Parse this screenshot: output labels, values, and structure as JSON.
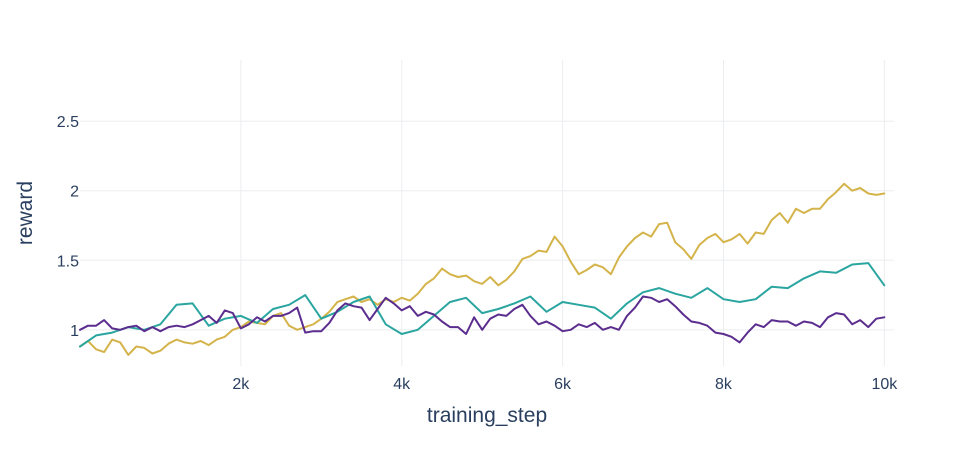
{
  "chart_data": {
    "type": "line",
    "xlabel": "training_step",
    "ylabel": "reward",
    "xlim": [
      0,
      10120
    ],
    "ylim": [
      0.74,
      2.94
    ],
    "xticks": [
      2000,
      4000,
      6000,
      8000,
      10000
    ],
    "xtick_labels": [
      "2k",
      "4k",
      "6k",
      "8k",
      "10k"
    ],
    "yticks": [
      1,
      1.5,
      2,
      2.5
    ],
    "ytick_labels": [
      "1",
      "1.5",
      "2",
      "2.5"
    ],
    "grid": true,
    "legend": false,
    "series": [
      {
        "color": "#d4b44a",
        "points": [
          [
            0,
            0.88
          ],
          [
            100,
            0.92
          ],
          [
            200,
            0.86
          ],
          [
            300,
            0.84
          ],
          [
            400,
            0.93
          ],
          [
            500,
            0.91
          ],
          [
            600,
            0.82
          ],
          [
            700,
            0.88
          ],
          [
            800,
            0.87
          ],
          [
            900,
            0.83
          ],
          [
            1000,
            0.85
          ],
          [
            1100,
            0.9
          ],
          [
            1200,
            0.93
          ],
          [
            1300,
            0.91
          ],
          [
            1400,
            0.9
          ],
          [
            1500,
            0.92
          ],
          [
            1600,
            0.89
          ],
          [
            1700,
            0.93
          ],
          [
            1800,
            0.95
          ],
          [
            1900,
            1.0
          ],
          [
            2000,
            1.02
          ],
          [
            2100,
            1.06
          ],
          [
            2200,
            1.05
          ],
          [
            2300,
            1.04
          ],
          [
            2400,
            1.1
          ],
          [
            2500,
            1.12
          ],
          [
            2600,
            1.03
          ],
          [
            2700,
            1.0
          ],
          [
            2800,
            1.02
          ],
          [
            2900,
            1.04
          ],
          [
            3000,
            1.08
          ],
          [
            3100,
            1.13
          ],
          [
            3200,
            1.2
          ],
          [
            3300,
            1.22
          ],
          [
            3400,
            1.24
          ],
          [
            3500,
            1.2
          ],
          [
            3600,
            1.22
          ],
          [
            3700,
            1.18
          ],
          [
            3800,
            1.22
          ],
          [
            3900,
            1.2
          ],
          [
            4000,
            1.23
          ],
          [
            4100,
            1.21
          ],
          [
            4200,
            1.26
          ],
          [
            4300,
            1.33
          ],
          [
            4400,
            1.37
          ],
          [
            4500,
            1.44
          ],
          [
            4600,
            1.4
          ],
          [
            4700,
            1.38
          ],
          [
            4800,
            1.39
          ],
          [
            4900,
            1.35
          ],
          [
            5000,
            1.33
          ],
          [
            5100,
            1.38
          ],
          [
            5200,
            1.32
          ],
          [
            5300,
            1.36
          ],
          [
            5400,
            1.42
          ],
          [
            5500,
            1.51
          ],
          [
            5600,
            1.53
          ],
          [
            5700,
            1.57
          ],
          [
            5800,
            1.56
          ],
          [
            5900,
            1.67
          ],
          [
            6000,
            1.6
          ],
          [
            6100,
            1.49
          ],
          [
            6200,
            1.4
          ],
          [
            6300,
            1.43
          ],
          [
            6400,
            1.47
          ],
          [
            6500,
            1.45
          ],
          [
            6600,
            1.4
          ],
          [
            6700,
            1.52
          ],
          [
            6800,
            1.6
          ],
          [
            6900,
            1.66
          ],
          [
            7000,
            1.7
          ],
          [
            7100,
            1.67
          ],
          [
            7200,
            1.76
          ],
          [
            7300,
            1.77
          ],
          [
            7400,
            1.63
          ],
          [
            7500,
            1.58
          ],
          [
            7600,
            1.51
          ],
          [
            7700,
            1.61
          ],
          [
            7800,
            1.66
          ],
          [
            7900,
            1.69
          ],
          [
            8000,
            1.63
          ],
          [
            8100,
            1.65
          ],
          [
            8200,
            1.69
          ],
          [
            8300,
            1.62
          ],
          [
            8400,
            1.7
          ],
          [
            8500,
            1.69
          ],
          [
            8600,
            1.79
          ],
          [
            8700,
            1.84
          ],
          [
            8800,
            1.77
          ],
          [
            8900,
            1.87
          ],
          [
            9000,
            1.84
          ],
          [
            9100,
            1.87
          ],
          [
            9200,
            1.87
          ],
          [
            9300,
            1.94
          ],
          [
            9400,
            1.99
          ],
          [
            9500,
            2.05
          ],
          [
            9600,
            2.0
          ],
          [
            9700,
            2.02
          ],
          [
            9800,
            1.98
          ],
          [
            9900,
            1.97
          ],
          [
            10000,
            1.98
          ]
        ]
      },
      {
        "color": "#2aa5a0",
        "points": [
          [
            0,
            0.88
          ],
          [
            200,
            0.96
          ],
          [
            400,
            0.98
          ],
          [
            600,
            1.02
          ],
          [
            800,
            1.0
          ],
          [
            1000,
            1.04
          ],
          [
            1200,
            1.18
          ],
          [
            1400,
            1.19
          ],
          [
            1600,
            1.03
          ],
          [
            1800,
            1.08
          ],
          [
            2000,
            1.1
          ],
          [
            2200,
            1.05
          ],
          [
            2400,
            1.15
          ],
          [
            2600,
            1.18
          ],
          [
            2800,
            1.25
          ],
          [
            3000,
            1.08
          ],
          [
            3200,
            1.13
          ],
          [
            3400,
            1.2
          ],
          [
            3600,
            1.24
          ],
          [
            3800,
            1.04
          ],
          [
            4000,
            0.97
          ],
          [
            4200,
            1.0
          ],
          [
            4400,
            1.1
          ],
          [
            4600,
            1.2
          ],
          [
            4800,
            1.23
          ],
          [
            5000,
            1.12
          ],
          [
            5200,
            1.15
          ],
          [
            5400,
            1.19
          ],
          [
            5600,
            1.24
          ],
          [
            5800,
            1.13
          ],
          [
            6000,
            1.2
          ],
          [
            6200,
            1.18
          ],
          [
            6400,
            1.16
          ],
          [
            6600,
            1.08
          ],
          [
            6800,
            1.19
          ],
          [
            7000,
            1.27
          ],
          [
            7200,
            1.3
          ],
          [
            7400,
            1.26
          ],
          [
            7600,
            1.23
          ],
          [
            7800,
            1.3
          ],
          [
            8000,
            1.22
          ],
          [
            8200,
            1.2
          ],
          [
            8400,
            1.22
          ],
          [
            8600,
            1.31
          ],
          [
            8800,
            1.3
          ],
          [
            9000,
            1.37
          ],
          [
            9200,
            1.42
          ],
          [
            9400,
            1.41
          ],
          [
            9600,
            1.47
          ],
          [
            9800,
            1.48
          ],
          [
            10000,
            1.32
          ]
        ]
      },
      {
        "color": "#5b2d8e",
        "points": [
          [
            0,
            1.0
          ],
          [
            100,
            1.03
          ],
          [
            200,
            1.03
          ],
          [
            300,
            1.07
          ],
          [
            400,
            1.01
          ],
          [
            500,
            1.0
          ],
          [
            600,
            1.02
          ],
          [
            700,
            1.03
          ],
          [
            800,
            0.99
          ],
          [
            900,
            1.02
          ],
          [
            1000,
            0.99
          ],
          [
            1100,
            1.02
          ],
          [
            1200,
            1.03
          ],
          [
            1300,
            1.02
          ],
          [
            1400,
            1.04
          ],
          [
            1500,
            1.07
          ],
          [
            1600,
            1.1
          ],
          [
            1700,
            1.05
          ],
          [
            1800,
            1.14
          ],
          [
            1900,
            1.12
          ],
          [
            2000,
            1.01
          ],
          [
            2100,
            1.04
          ],
          [
            2200,
            1.09
          ],
          [
            2300,
            1.06
          ],
          [
            2400,
            1.1
          ],
          [
            2500,
            1.1
          ],
          [
            2600,
            1.12
          ],
          [
            2700,
            1.16
          ],
          [
            2800,
            0.98
          ],
          [
            2900,
            0.99
          ],
          [
            3000,
            0.99
          ],
          [
            3100,
            1.05
          ],
          [
            3200,
            1.14
          ],
          [
            3300,
            1.19
          ],
          [
            3400,
            1.17
          ],
          [
            3500,
            1.16
          ],
          [
            3600,
            1.07
          ],
          [
            3700,
            1.15
          ],
          [
            3800,
            1.23
          ],
          [
            3900,
            1.19
          ],
          [
            4000,
            1.14
          ],
          [
            4100,
            1.17
          ],
          [
            4200,
            1.1
          ],
          [
            4300,
            1.13
          ],
          [
            4400,
            1.11
          ],
          [
            4500,
            1.06
          ],
          [
            4600,
            1.02
          ],
          [
            4700,
            1.02
          ],
          [
            4800,
            0.97
          ],
          [
            4900,
            1.09
          ],
          [
            5000,
            1.0
          ],
          [
            5100,
            1.08
          ],
          [
            5200,
            1.11
          ],
          [
            5300,
            1.1
          ],
          [
            5400,
            1.15
          ],
          [
            5500,
            1.18
          ],
          [
            5600,
            1.1
          ],
          [
            5700,
            1.04
          ],
          [
            5800,
            1.06
          ],
          [
            5900,
            1.03
          ],
          [
            6000,
            0.99
          ],
          [
            6100,
            1.0
          ],
          [
            6200,
            1.04
          ],
          [
            6300,
            1.02
          ],
          [
            6400,
            1.05
          ],
          [
            6500,
            1.0
          ],
          [
            6600,
            1.02
          ],
          [
            6700,
            1.0
          ],
          [
            6800,
            1.1
          ],
          [
            6900,
            1.16
          ],
          [
            7000,
            1.24
          ],
          [
            7100,
            1.23
          ],
          [
            7200,
            1.2
          ],
          [
            7300,
            1.22
          ],
          [
            7400,
            1.17
          ],
          [
            7500,
            1.11
          ],
          [
            7600,
            1.06
          ],
          [
            7700,
            1.05
          ],
          [
            7800,
            1.03
          ],
          [
            7900,
            0.98
          ],
          [
            8000,
            0.97
          ],
          [
            8100,
            0.95
          ],
          [
            8200,
            0.91
          ],
          [
            8300,
            0.98
          ],
          [
            8400,
            1.04
          ],
          [
            8500,
            1.02
          ],
          [
            8600,
            1.07
          ],
          [
            8700,
            1.06
          ],
          [
            8800,
            1.06
          ],
          [
            8900,
            1.03
          ],
          [
            9000,
            1.06
          ],
          [
            9100,
            1.05
          ],
          [
            9200,
            1.02
          ],
          [
            9300,
            1.09
          ],
          [
            9400,
            1.12
          ],
          [
            9500,
            1.11
          ],
          [
            9600,
            1.04
          ],
          [
            9700,
            1.07
          ],
          [
            9800,
            1.02
          ],
          [
            9900,
            1.08
          ],
          [
            10000,
            1.09
          ]
        ]
      }
    ]
  }
}
